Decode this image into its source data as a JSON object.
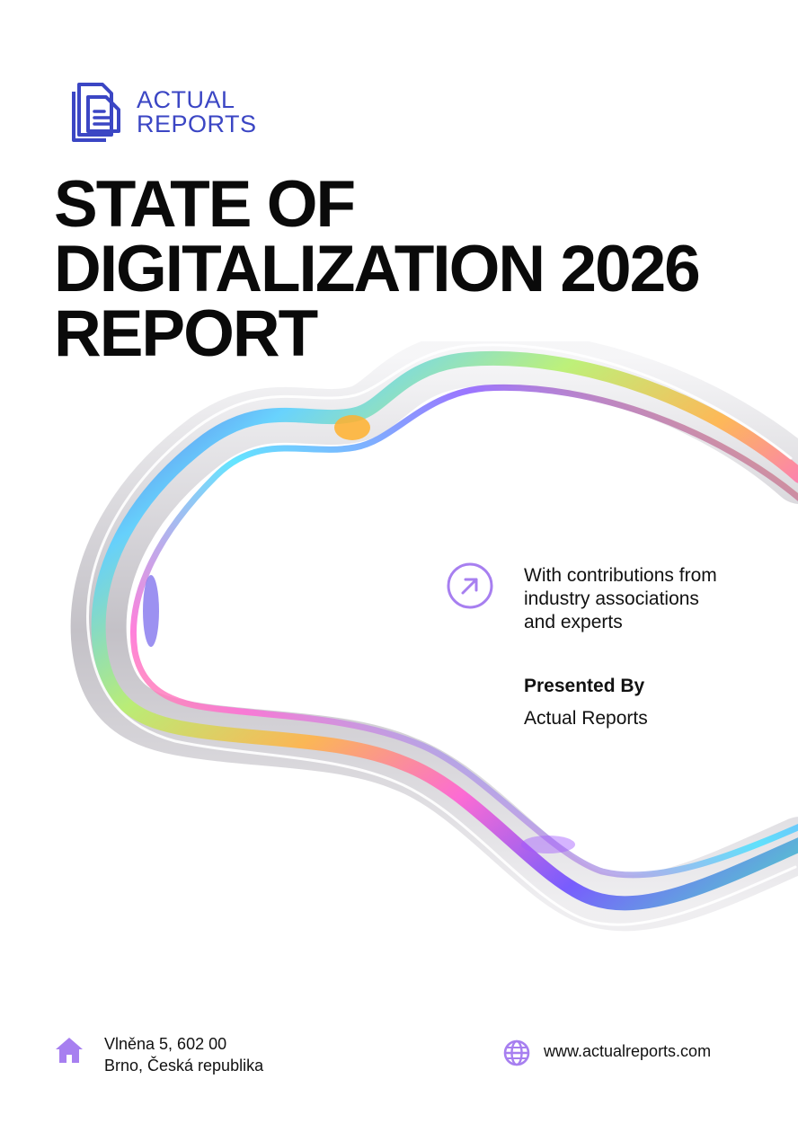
{
  "brand": {
    "line1": "ACTUAL",
    "line2": "REPORTS",
    "color": "#3b46c4"
  },
  "cover": {
    "title_lines": [
      "STATE OF",
      "DIGITALIZATION 2026",
      "REPORT"
    ],
    "contributions": {
      "line1": "With contributions from",
      "line2": "industry associations",
      "line3": "and experts"
    },
    "presented_by_label": "Presented By",
    "presented_by_name": "Actual Reports",
    "accent_color": "#a77ff0"
  },
  "footer": {
    "address_line1": "Vlněna 5, 602 00",
    "address_line2": "Brno, Česká republika",
    "website": "www.actualreports.com",
    "icons": [
      "home-icon",
      "globe-icon"
    ]
  },
  "decor": {
    "artwork": "iridescent-glass-ribbon",
    "icon": "arrow-up-right-icon"
  }
}
